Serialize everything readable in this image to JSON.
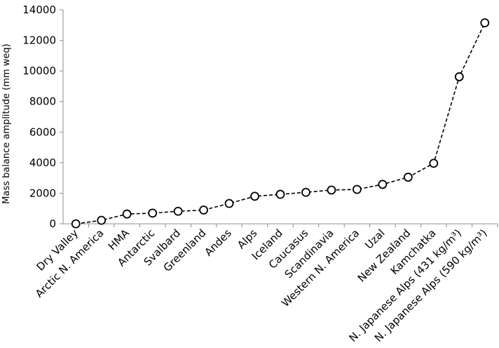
{
  "chart_data": {
    "type": "line",
    "title": "",
    "xlabel": "",
    "ylabel": "Mass balance amplitude (mm weq)",
    "ylim": [
      0,
      14000
    ],
    "yticks": [
      0,
      2000,
      4000,
      6000,
      8000,
      10000,
      12000,
      14000
    ],
    "ytick_labels": [
      "0",
      "2000",
      "4000",
      "6000",
      "8000",
      "10000",
      "12000",
      "14000"
    ],
    "grid": false,
    "legend": "none",
    "line_style": "dashed",
    "marker": "open-circle",
    "line_color": "#000000",
    "categories": [
      "Dry Valley",
      "Arctic N. America",
      "HMA",
      "Antarctic",
      "Svalbard",
      "Greenland",
      "Andes",
      "Alps",
      "Iceland",
      "Caucasus",
      "Scandinavia",
      "Western N. America",
      "Uzal",
      "New Zealand",
      "Kamchatka",
      "N. Japanese Alps (431 kg/m³)",
      "N. Japanese Alps (590 kg/m³)"
    ],
    "values": [
      0,
      230,
      640,
      700,
      820,
      900,
      1330,
      1800,
      1930,
      2060,
      2210,
      2250,
      2580,
      3050,
      3960,
      9620,
      13150
    ]
  }
}
